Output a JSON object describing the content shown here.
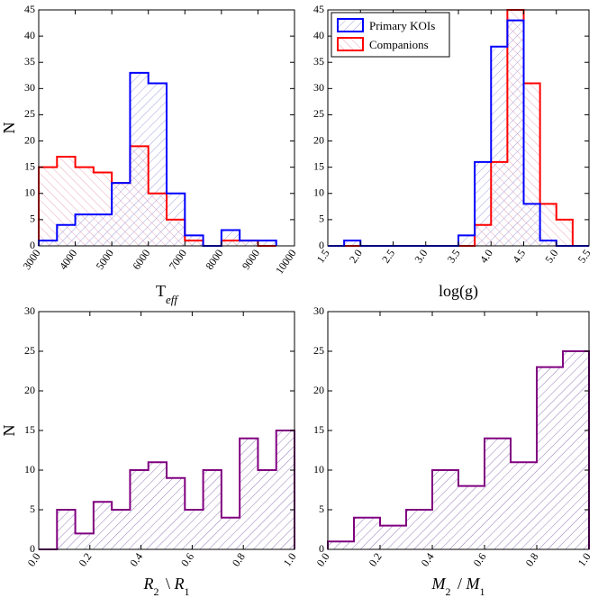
{
  "colors": {
    "primary": "#0000ff",
    "companion": "#ff0000",
    "ratio": "#800080",
    "hatch_purple": "#7b5aa6",
    "hatch_blue": "#8a8ad8",
    "hatch_pink": "#e58fa6"
  },
  "chart_data": [
    {
      "type": "bar",
      "name": "teff-histogram",
      "title": "",
      "xlabel": "T",
      "xlabel_sub": "eff",
      "ylabel": "N",
      "xlim": [
        3000,
        10000
      ],
      "ylim": [
        0,
        45
      ],
      "xticks": [
        3000,
        4000,
        5000,
        6000,
        7000,
        8000,
        9000,
        10000
      ],
      "xtick_labels": [
        "3000",
        "4000",
        "5000",
        "6000",
        "7000",
        "8000",
        "9000",
        "10000"
      ],
      "yticks": [
        0,
        5,
        10,
        15,
        20,
        25,
        30,
        35,
        40,
        45
      ],
      "ytick_labels": [
        "0",
        "5",
        "10",
        "15",
        "20",
        "25",
        "30",
        "35",
        "40",
        "45"
      ],
      "grid": false,
      "bin_edges": [
        3000,
        3500,
        4000,
        4500,
        5000,
        5500,
        6000,
        6500,
        7000,
        7500,
        8000,
        8500,
        9000,
        9500
      ],
      "series": [
        {
          "name": "Primary KOIs",
          "color": "blue",
          "values": [
            1,
            4,
            6,
            6,
            12,
            33,
            31,
            10,
            2,
            0,
            3,
            1,
            1
          ]
        },
        {
          "name": "Companions",
          "color": "red",
          "values": [
            15,
            17,
            15,
            14,
            12,
            19,
            10,
            5,
            1,
            0,
            1,
            1,
            0
          ]
        }
      ]
    },
    {
      "type": "bar",
      "name": "logg-histogram",
      "title": "",
      "xlabel": "log(g)",
      "ylabel": "",
      "xlim": [
        1.5,
        5.5
      ],
      "ylim": [
        0,
        45
      ],
      "xticks": [
        1.5,
        2.0,
        2.5,
        3.0,
        3.5,
        4.0,
        4.5,
        5.0,
        5.5
      ],
      "xtick_labels": [
        "1.5",
        "2.0",
        "2.5",
        "3.0",
        "3.5",
        "4.0",
        "4.5",
        "5.0",
        "5.5"
      ],
      "yticks": [
        0,
        5,
        10,
        15,
        20,
        25,
        30,
        35,
        40,
        45
      ],
      "ytick_labels": [
        "0",
        "5",
        "10",
        "15",
        "20",
        "25",
        "30",
        "35",
        "40",
        "45"
      ],
      "grid": false,
      "legend": {
        "position": "top-left",
        "entries": [
          "Primary KOIs",
          "Companions"
        ]
      },
      "bin_edges": [
        1.5,
        1.75,
        2.0,
        2.25,
        2.5,
        2.75,
        3.0,
        3.25,
        3.5,
        3.75,
        4.0,
        4.25,
        4.5,
        4.75,
        5.0,
        5.25,
        5.5
      ],
      "series": [
        {
          "name": "Primary KOIs",
          "color": "blue",
          "values": [
            0,
            1,
            0,
            0,
            0,
            0,
            0,
            0,
            2,
            16,
            38,
            43,
            8,
            1,
            0,
            0
          ]
        },
        {
          "name": "Companions",
          "color": "red",
          "values": [
            0,
            0,
            0,
            0,
            0,
            0,
            0,
            0,
            0,
            4,
            16,
            46,
            31,
            8,
            5,
            0
          ]
        }
      ]
    },
    {
      "type": "bar",
      "name": "radius-ratio-histogram",
      "title": "",
      "xlabel": "R",
      "xlabel_a_sub": "2",
      "xlabel_op": " \\ ",
      "xlabel_b": "R",
      "xlabel_b_sub": "1",
      "ylabel": "N",
      "xlim": [
        0.0,
        1.0
      ],
      "ylim": [
        0,
        30
      ],
      "xticks": [
        0.0,
        0.2,
        0.4,
        0.6,
        0.8,
        1.0
      ],
      "xtick_labels": [
        "0.0",
        "0.2",
        "0.4",
        "0.6",
        "0.8",
        "1.0"
      ],
      "yticks": [
        0,
        5,
        10,
        15,
        20,
        25,
        30
      ],
      "ytick_labels": [
        "0",
        "5",
        "10",
        "15",
        "20",
        "25",
        "30"
      ],
      "grid": false,
      "bin_edges": [
        0.0,
        0.0714,
        0.1429,
        0.2143,
        0.2857,
        0.3571,
        0.4286,
        0.5,
        0.5714,
        0.6429,
        0.7143,
        0.7857,
        0.8571,
        0.9286,
        1.0
      ],
      "series": [
        {
          "name": "R2/R1",
          "color": "purple",
          "values": [
            0,
            5,
            2,
            6,
            5,
            10,
            11,
            9,
            5,
            10,
            4,
            14,
            10,
            15
          ]
        }
      ]
    },
    {
      "type": "bar",
      "name": "mass-ratio-histogram",
      "title": "",
      "xlabel": "M",
      "xlabel_a_sub": "2",
      "xlabel_op": " / ",
      "xlabel_b": "M",
      "xlabel_b_sub": "1",
      "ylabel": "",
      "xlim": [
        0.0,
        1.0
      ],
      "ylim": [
        0,
        30
      ],
      "xticks": [
        0.0,
        0.2,
        0.4,
        0.6,
        0.8,
        1.0
      ],
      "xtick_labels": [
        "0.0",
        "0.2",
        "0.4",
        "0.6",
        "0.8",
        "1.0"
      ],
      "yticks": [
        0,
        5,
        10,
        15,
        20,
        25,
        30
      ],
      "ytick_labels": [
        "0",
        "5",
        "10",
        "15",
        "20",
        "25",
        "30"
      ],
      "grid": false,
      "bin_edges": [
        0.0,
        0.1,
        0.2,
        0.3,
        0.4,
        0.5,
        0.6,
        0.7,
        0.8,
        0.9,
        1.0
      ],
      "series": [
        {
          "name": "M2/M1",
          "color": "purple",
          "values": [
            1,
            4,
            3,
            5,
            10,
            8,
            14,
            11,
            23,
            25
          ]
        }
      ]
    }
  ]
}
